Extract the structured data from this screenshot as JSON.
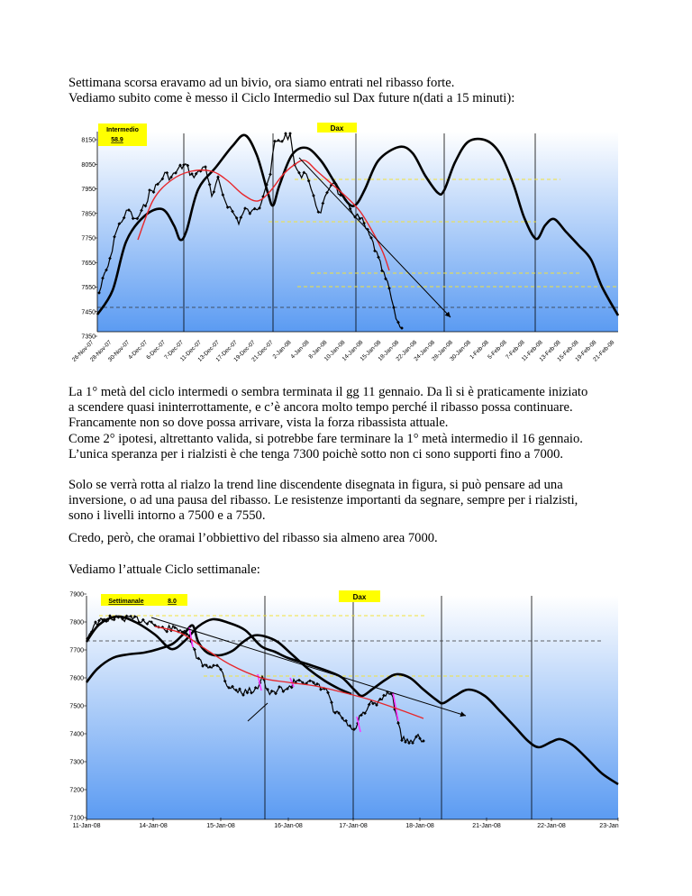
{
  "intro": {
    "line1": "Settimana scorsa eravamo ad un bivio, ora siamo entrati nel ribasso forte.",
    "line2": "Vediamo subito come è messo il Ciclo Intermedio sul Dax future n(dati a 15 minuti):"
  },
  "chart1": {
    "title": "Dax",
    "label_name": "Intermedio",
    "label_value": "58.9",
    "y_ticks": [
      "8150",
      "8050",
      "7950",
      "7850",
      "7750",
      "7650",
      "7550",
      "7450",
      "7350"
    ],
    "x_ticks": [
      "26-Nov-07",
      "28-Nov-07",
      "30-Nov-07",
      "4-Dec-07",
      "6-Dec-07",
      "7-Dec-07",
      "11-Dec-07",
      "13-Dec-07",
      "17-Dec-07",
      "19-Dec-07",
      "21-Dec-07",
      "2-Jan-08",
      "4-Jan-08",
      "8-Jan-08",
      "10-Jan-08",
      "14-Jan-08",
      "15-Jan-08",
      "18-Jan-08",
      "22-Jan-08",
      "24-Jan-08",
      "28-Jan-08",
      "30-Jan-08",
      "1-Feb-08",
      "5-Feb-08",
      "7-Feb-08",
      "11-Feb-08",
      "13-Feb-08",
      "15-Feb-08",
      "19-Feb-08",
      "21-Feb-08"
    ]
  },
  "para2": {
    "line1": "La 1° metà del ciclo intermedi o sembra terminata il gg 11 gennaio. Da lì si è praticamente iniziato",
    "line2": "a scendere quasi ininterrottamente, e c’è ancora molto tempo perché il ribasso possa continuare.",
    "line3": "Francamente non so dove possa arrivare, vista la forza ribassista attuale.",
    "line4": "Come 2° ipotesi, altrettanto valida, si potrebbe fare terminare la 1° metà intermedio il 16 gennaio.",
    "line5": "L’unica speranza per i rialzisti è che tenga 7300 poichè sotto non ci sono supporti fino a 7000."
  },
  "para3": {
    "line1": "Solo se verrà rotta al rialzo la trend line discendente disegnata in figura, si può pensare ad una",
    "line2": "inversione, o ad una pausa del ribasso. Le resistenze importanti da segnare, sempre per i rialzisti,",
    "line3": "sono i livelli intorno a 7500 e a 7550."
  },
  "para4": {
    "line1": "Credo, però, che oramai l’obbiettivo del ribasso sia almeno area 7000."
  },
  "para5": {
    "line1": "Vediamo l’attuale Ciclo settimanale:"
  },
  "chart2": {
    "title": "Dax",
    "label_name": "Settimanale",
    "label_value": "8.0",
    "y_ticks": [
      "7900",
      "7800",
      "7700",
      "7600",
      "7500",
      "7400",
      "7300",
      "7200",
      "7100"
    ],
    "x_ticks": [
      "11-Jan-08",
      "14-Jan-08",
      "15-Jan-08",
      "16-Jan-08",
      "17-Jan-08",
      "18-Jan-08",
      "21-Jan-08",
      "22-Jan-08",
      "23-Jan"
    ]
  },
  "colors": {
    "plot_gradient_top": "#ffffff",
    "plot_gradient_bottom": "#5b9bf2",
    "price": "#000000",
    "cycle": "#000000",
    "moving_average": "#e8262a",
    "label_box": "#ffff00",
    "resistance_lines": "#f2e23a",
    "highlight_segments": "#ff33ff"
  }
}
